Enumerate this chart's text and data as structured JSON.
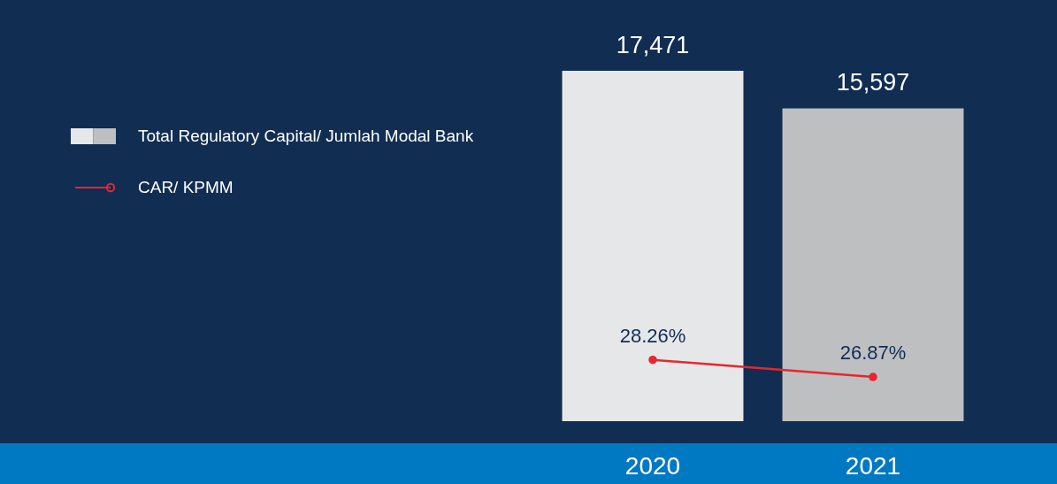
{
  "chart_data": {
    "type": "bar",
    "categories": [
      "2020",
      "2021"
    ],
    "legend": "top left",
    "series": [
      {
        "name": "Total Regulatory Capital/ Jumlah Modal Bank",
        "colors": [
          "#e6e7e9",
          "#bebfc1"
        ],
        "values": [
          17471,
          15597
        ],
        "value_labels": [
          "17,471",
          "15,597"
        ]
      },
      {
        "name": "CAR/ KPMM",
        "type": "line",
        "axis": "y2",
        "color": "#e8262b",
        "marker": "circle",
        "values": [
          28.26,
          26.87
        ],
        "value_labels": [
          "28.26%",
          "26.87%"
        ]
      }
    ]
  }
}
